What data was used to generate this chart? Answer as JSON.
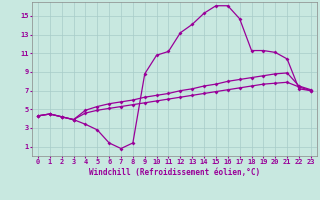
{
  "background_color": "#c8e8e0",
  "grid_color": "#a8ccc8",
  "line_color": "#990099",
  "marker": "D",
  "markersize": 2.0,
  "linewidth": 0.9,
  "xlabel": "Windchill (Refroidissement éolien,°C)",
  "xlabel_fontsize": 5.5,
  "tick_fontsize": 5.0,
  "xlim_min": -0.5,
  "xlim_max": 23.5,
  "ylim_min": 0,
  "ylim_max": 16.5,
  "xticks": [
    0,
    1,
    2,
    3,
    4,
    5,
    6,
    7,
    8,
    9,
    10,
    11,
    12,
    13,
    14,
    15,
    16,
    17,
    18,
    19,
    20,
    21,
    22,
    23
  ],
  "yticks": [
    1,
    3,
    5,
    7,
    9,
    11,
    13,
    15
  ],
  "line1_x": [
    0,
    1,
    2,
    3,
    4,
    5,
    6,
    7,
    8,
    9,
    10,
    11,
    12,
    13,
    14,
    15,
    16,
    17,
    18,
    19,
    20,
    21,
    22,
    23
  ],
  "line1_y": [
    4.3,
    4.5,
    4.2,
    3.9,
    3.4,
    2.8,
    1.4,
    0.8,
    1.4,
    8.8,
    10.8,
    11.2,
    13.2,
    14.1,
    15.3,
    16.1,
    16.1,
    14.7,
    11.3,
    11.3,
    11.1,
    10.4,
    7.2,
    7.0
  ],
  "line2_x": [
    0,
    1,
    2,
    3,
    4,
    5,
    6,
    7,
    8,
    9,
    10,
    11,
    12,
    13,
    14,
    15,
    16,
    17,
    18,
    19,
    20,
    21,
    22,
    23
  ],
  "line2_y": [
    4.3,
    4.5,
    4.2,
    3.9,
    4.9,
    5.3,
    5.6,
    5.8,
    6.0,
    6.3,
    6.5,
    6.7,
    7.0,
    7.2,
    7.5,
    7.7,
    8.0,
    8.2,
    8.4,
    8.6,
    8.8,
    8.9,
    7.5,
    7.1
  ],
  "line3_x": [
    0,
    1,
    2,
    3,
    4,
    5,
    6,
    7,
    8,
    9,
    10,
    11,
    12,
    13,
    14,
    15,
    16,
    17,
    18,
    19,
    20,
    21,
    22,
    23
  ],
  "line3_y": [
    4.3,
    4.5,
    4.2,
    3.9,
    4.6,
    4.9,
    5.1,
    5.3,
    5.5,
    5.7,
    5.9,
    6.1,
    6.3,
    6.5,
    6.7,
    6.9,
    7.1,
    7.3,
    7.5,
    7.7,
    7.8,
    7.9,
    7.4,
    7.0
  ]
}
